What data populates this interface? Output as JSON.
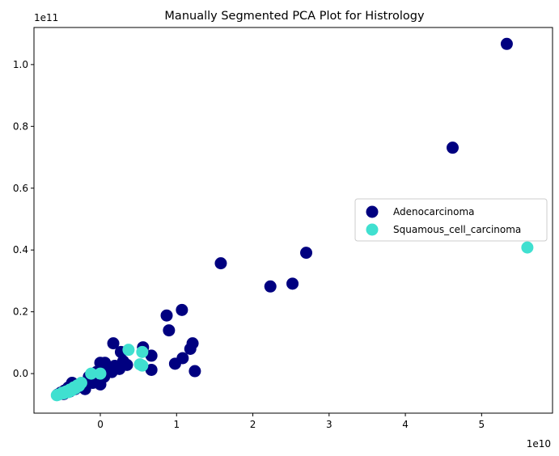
{
  "chart_data": {
    "type": "scatter",
    "title": "Manually Segmented PCA Plot for Histrology",
    "xlabel": "",
    "ylabel": "",
    "x_offset_label": "1e10",
    "y_offset_label": "1e11",
    "xlim": [
      -0.87,
      5.93
    ],
    "ylim": [
      -0.128,
      1.12
    ],
    "xticks": [
      0,
      1,
      2,
      3,
      4,
      5
    ],
    "xtick_labels": [
      "0",
      "1",
      "2",
      "3",
      "4",
      "5"
    ],
    "yticks": [
      0.0,
      0.2,
      0.4,
      0.6,
      0.8,
      1.0
    ],
    "ytick_labels": [
      "0.0",
      "0.2",
      "0.4",
      "0.6",
      "0.8",
      "1.0"
    ],
    "grid": false,
    "legend_position": "center-right",
    "series": [
      {
        "name": "Adenocarcinoma",
        "color": "#000080",
        "points": [
          [
            5.33,
            1.067
          ],
          [
            4.62,
            0.731
          ],
          [
            2.7,
            0.391
          ],
          [
            2.52,
            0.291
          ],
          [
            2.23,
            0.282
          ],
          [
            1.58,
            0.357
          ],
          [
            1.07,
            0.206
          ],
          [
            0.87,
            0.188
          ],
          [
            0.9,
            0.14
          ],
          [
            1.21,
            0.098
          ],
          [
            1.18,
            0.08
          ],
          [
            1.08,
            0.05
          ],
          [
            0.98,
            0.032
          ],
          [
            1.24,
            0.008
          ],
          [
            0.67,
            0.058
          ],
          [
            0.67,
            0.012
          ],
          [
            0.56,
            0.085
          ],
          [
            0.17,
            0.098
          ],
          [
            0.27,
            0.07
          ],
          [
            0.0,
            0.035
          ],
          [
            0.06,
            0.035
          ],
          [
            0.19,
            0.025
          ],
          [
            0.26,
            0.025
          ],
          [
            0.35,
            0.028
          ],
          [
            0.25,
            0.015
          ],
          [
            0.12,
            0.012
          ],
          [
            0.0,
            -0.035
          ],
          [
            -0.12,
            -0.025
          ],
          [
            -0.22,
            -0.035
          ],
          [
            -0.3,
            -0.04
          ],
          [
            -0.37,
            -0.03
          ],
          [
            -0.42,
            -0.045
          ],
          [
            -0.47,
            -0.055
          ],
          [
            -0.52,
            -0.062
          ],
          [
            -0.56,
            -0.068
          ],
          [
            -0.48,
            -0.066
          ],
          [
            -0.4,
            -0.058
          ],
          [
            -0.33,
            -0.05
          ],
          [
            -0.2,
            -0.05
          ],
          [
            -0.1,
            -0.03
          ],
          [
            0.05,
            -0.01
          ],
          [
            0.15,
            0.005
          ],
          [
            -0.05,
            0.005
          ],
          [
            -0.15,
            -0.01
          ],
          [
            0.3,
            0.04
          ]
        ]
      },
      {
        "name": "Squamous_cell_carcinoma",
        "color": "#40E0D0",
        "points": [
          [
            5.6,
            0.408
          ],
          [
            0.55,
            0.07
          ],
          [
            0.37,
            0.077
          ],
          [
            0.52,
            0.03
          ],
          [
            0.55,
            0.026
          ],
          [
            -0.12,
            0.0
          ],
          [
            0.0,
            0.0
          ],
          [
            -0.25,
            -0.03
          ],
          [
            -0.3,
            -0.038
          ],
          [
            -0.35,
            -0.045
          ],
          [
            -0.4,
            -0.052
          ],
          [
            -0.45,
            -0.058
          ],
          [
            -0.5,
            -0.062
          ],
          [
            -0.55,
            -0.068
          ],
          [
            -0.57,
            -0.07
          ],
          [
            -0.42,
            -0.06
          ],
          [
            -0.33,
            -0.048
          ],
          [
            -0.48,
            -0.064
          ],
          [
            -0.38,
            -0.055
          ],
          [
            -0.28,
            -0.04
          ]
        ]
      }
    ]
  }
}
